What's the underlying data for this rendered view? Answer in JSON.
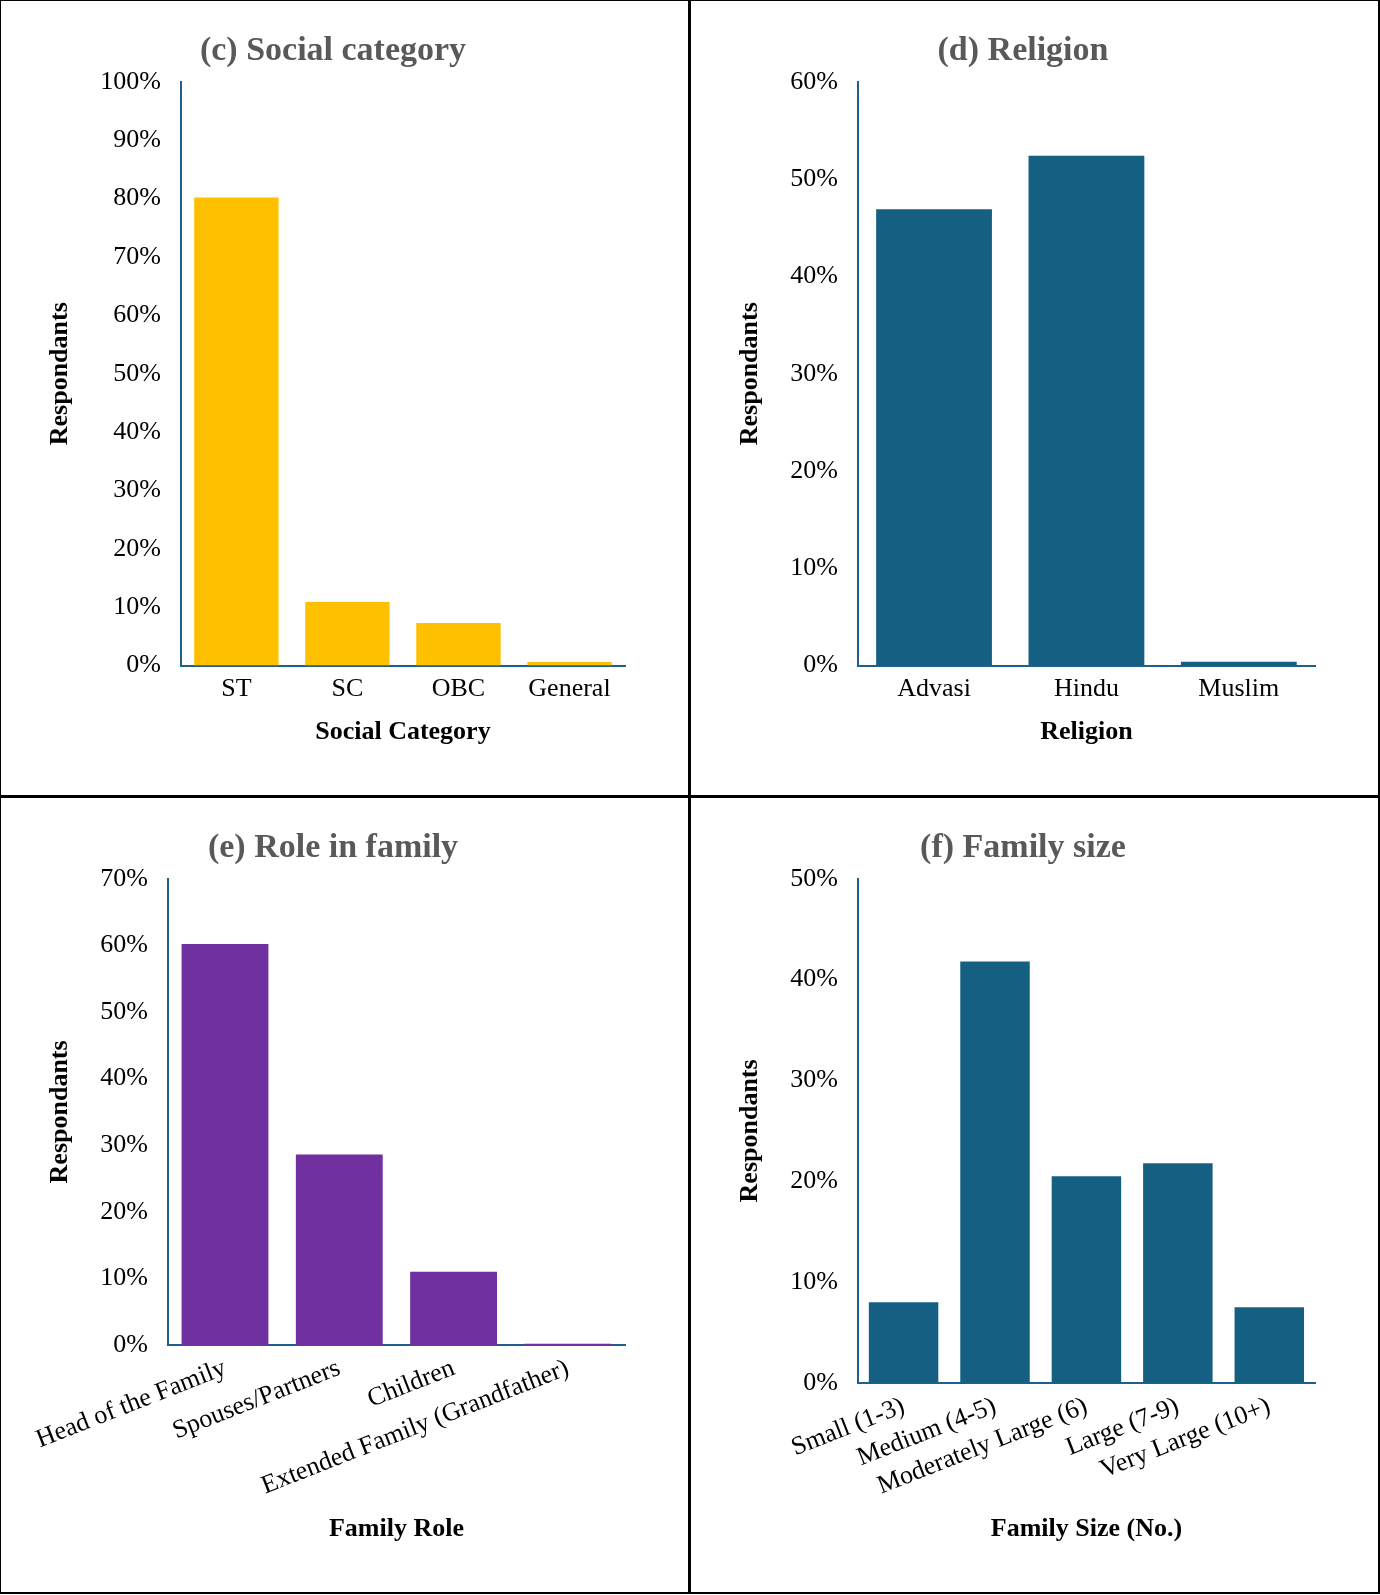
{
  "chart_data": [
    {
      "type": "bar",
      "title": "(c) Social category",
      "xlabel": "Social Category",
      "ylabel": "Respondants",
      "categories": [
        "ST",
        "SC",
        "OBC",
        "General"
      ],
      "values": [
        80.2,
        10.9,
        7.3,
        0.6
      ],
      "color": "#ffc000",
      "ylim": [
        0,
        100
      ],
      "yticks": [
        {
          "value": 0,
          "label": "0%"
        },
        {
          "value": 10,
          "label": "10%"
        },
        {
          "value": 20,
          "label": "20%"
        },
        {
          "value": 30,
          "label": "30%"
        },
        {
          "value": 40,
          "label": "40%"
        },
        {
          "value": 50,
          "label": "50%"
        },
        {
          "value": 60,
          "label": "60%"
        },
        {
          "value": 70,
          "label": "70%"
        },
        {
          "value": 80,
          "label": "80%"
        },
        {
          "value": 90,
          "label": "90%"
        },
        {
          "value": 100,
          "label": "100%"
        }
      ],
      "grid": false,
      "legend": false
    },
    {
      "type": "bar",
      "title": "(d) Religion",
      "xlabel": "Religion",
      "ylabel": "Respondants",
      "categories": [
        "Advasi",
        "Hindu",
        "Muslim"
      ],
      "values": [
        46.9,
        52.4,
        0.4
      ],
      "color": "#156082",
      "ylim": [
        0,
        60
      ],
      "yticks": [
        {
          "value": 0,
          "label": "0%"
        },
        {
          "value": 10,
          "label": "10%"
        },
        {
          "value": 20,
          "label": "20%"
        },
        {
          "value": 30,
          "label": "30%"
        },
        {
          "value": 40,
          "label": "40%"
        },
        {
          "value": 50,
          "label": "50%"
        },
        {
          "value": 60,
          "label": "60%"
        }
      ],
      "grid": false,
      "legend": false
    },
    {
      "type": "bar",
      "title": "(e) Role in family",
      "xlabel": "Family Role",
      "ylabel": "Respondants",
      "categories": [
        "Head of the Family",
        "Spouses/Partners",
        "Children",
        "Extended Family (Grandfather)"
      ],
      "values": [
        60.2,
        28.6,
        11,
        0.2
      ],
      "color": "#7030a0",
      "ylim": [
        0,
        70
      ],
      "yticks": [
        {
          "value": 0,
          "label": "0%"
        },
        {
          "value": 10,
          "label": "10%"
        },
        {
          "value": 20,
          "label": "20%"
        },
        {
          "value": 30,
          "label": "30%"
        },
        {
          "value": 40,
          "label": "40%"
        },
        {
          "value": 50,
          "label": "50%"
        },
        {
          "value": 60,
          "label": "60%"
        },
        {
          "value": 70,
          "label": "70%"
        }
      ],
      "grid": false,
      "legend": false
    },
    {
      "type": "bar",
      "title": "(f) Family size",
      "xlabel": "Family Size (No.)",
      "ylabel": "Respondants",
      "categories": [
        "Small (1-3)",
        "Medium (4-5)",
        "Moderately Large (6)",
        "Large (7-9)",
        "Very Large (10+)"
      ],
      "values": [
        8,
        41.8,
        20.5,
        21.8,
        7.5
      ],
      "color": "#156082",
      "ylim": [
        0,
        50
      ],
      "yticks": [
        {
          "value": 0,
          "label": "0%"
        },
        {
          "value": 10,
          "label": "10%"
        },
        {
          "value": 20,
          "label": "20%"
        },
        {
          "value": 30,
          "label": "30%"
        },
        {
          "value": 40,
          "label": "40%"
        },
        {
          "value": 50,
          "label": "50%"
        }
      ],
      "grid": false,
      "legend": false
    }
  ]
}
